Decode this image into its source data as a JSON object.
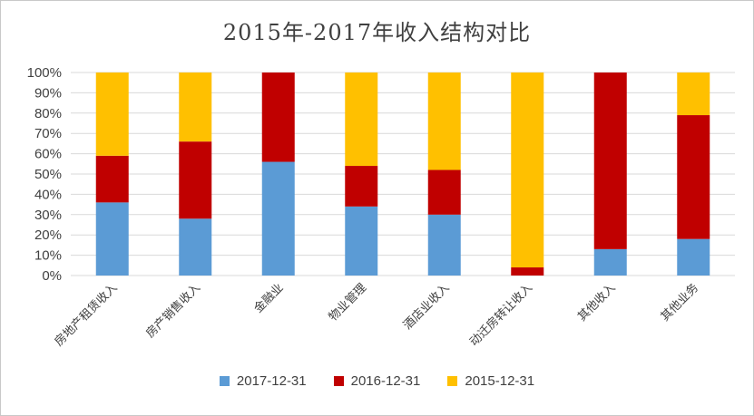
{
  "chart_data": {
    "type": "bar",
    "stacked": true,
    "title": "2015年-2017年收入结构对比",
    "categories": [
      "房地产租赁收入",
      "房产销售收入",
      "金融业",
      "物业管理",
      "酒店业收入",
      "动迁房转让收入",
      "其他收入",
      "其他业务"
    ],
    "series": [
      {
        "name": "2017-12-31",
        "color": "#5b9bd5",
        "values": [
          36,
          28,
          56,
          34,
          30,
          0,
          13,
          18
        ]
      },
      {
        "name": "2016-12-31",
        "color": "#c00000",
        "values": [
          23,
          38,
          44,
          20,
          22,
          4,
          87,
          61
        ]
      },
      {
        "name": "2015-12-31",
        "color": "#ffc000",
        "values": [
          41,
          34,
          0,
          46,
          48,
          96,
          0,
          21
        ]
      }
    ],
    "ylim": [
      0,
      100
    ],
    "yticks": [
      "0%",
      "10%",
      "20%",
      "30%",
      "40%",
      "50%",
      "60%",
      "70%",
      "80%",
      "90%",
      "100%"
    ],
    "grid": true,
    "legend_position": "bottom"
  }
}
